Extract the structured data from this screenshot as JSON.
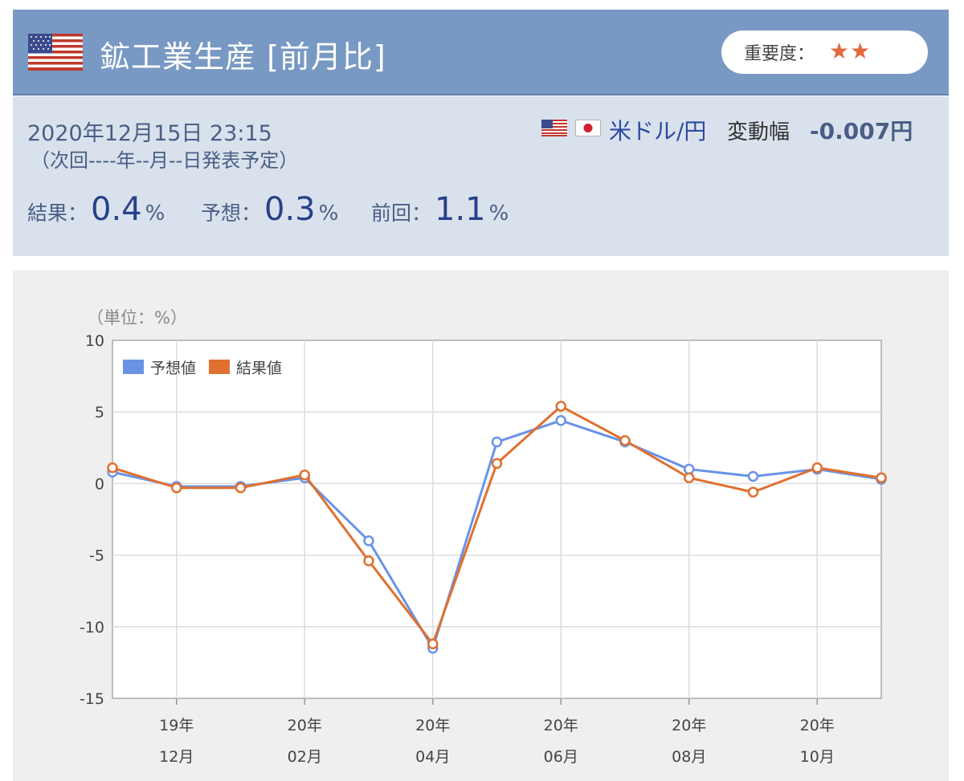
{
  "header": {
    "title": "鉱工業生産 [前月比]",
    "importance_label": "重要度：",
    "importance_stars": "★★"
  },
  "info": {
    "datetime": "2020年12月15日 23:15",
    "next_release": "（次回----年--月--日発表予定）",
    "pair": "米ドル/円",
    "change_label": "変動幅",
    "change_value": "-0.007円",
    "result_label": "結果：",
    "result_value": "0.4",
    "forecast_label": "予想：",
    "forecast_value": "0.3",
    "previous_label": "前回：",
    "previous_value": "1.1",
    "percent": "%"
  },
  "colors": {
    "header_bg": "#7899c3",
    "forecast_series": "#6a93e6",
    "result_series": "#e0702f",
    "value_text": "#27408b"
  },
  "chart_data": {
    "type": "line",
    "unit_note": "（単位：%）",
    "ylim": [
      -15,
      10
    ],
    "yticks": [
      10,
      5,
      0,
      -5,
      -10,
      -15
    ],
    "x": [
      "2019-11",
      "2019-12",
      "2020-01",
      "2020-02",
      "2020-03",
      "2020-04",
      "2020-05",
      "2020-06",
      "2020-07",
      "2020-08",
      "2020-09",
      "2020-10",
      "2020-11"
    ],
    "xtick_labels": [
      {
        "index": 1,
        "year": "19年",
        "month": "12月"
      },
      {
        "index": 3,
        "year": "20年",
        "month": "02月"
      },
      {
        "index": 5,
        "year": "20年",
        "month": "04月"
      },
      {
        "index": 7,
        "year": "20年",
        "month": "06月"
      },
      {
        "index": 9,
        "year": "20年",
        "month": "08月"
      },
      {
        "index": 11,
        "year": "20年",
        "month": "10月"
      }
    ],
    "series": [
      {
        "name": "予想値",
        "color": "#6a93e6",
        "values": [
          0.8,
          -0.2,
          -0.2,
          0.4,
          -4.0,
          -11.5,
          2.9,
          4.4,
          2.9,
          1.0,
          0.5,
          1.0,
          0.3
        ]
      },
      {
        "name": "結果値",
        "color": "#e0702f",
        "values": [
          1.1,
          -0.3,
          -0.3,
          0.6,
          -5.4,
          -11.2,
          1.4,
          5.4,
          3.0,
          0.4,
          -0.6,
          1.1,
          0.4
        ]
      }
    ],
    "legend": "top-left",
    "grid": true
  }
}
